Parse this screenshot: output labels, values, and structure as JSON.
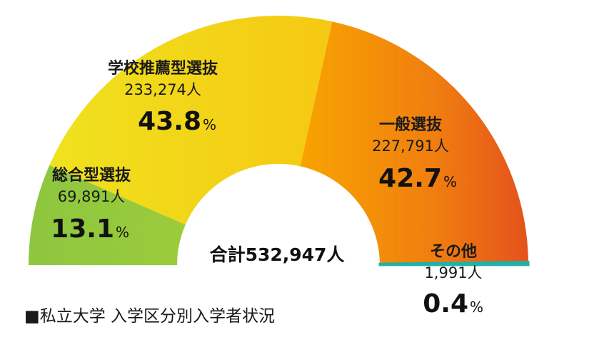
{
  "chart_data": {
    "type": "pie",
    "variant": "semicircle-donut",
    "caption": "■私立大学 入学区分別入学者状況",
    "total_label": "合計532,947人",
    "unit_suffix": "%",
    "slices": [
      {
        "name": "総合型選抜",
        "count_label": "69,891人",
        "count": 69891,
        "percent": 13.1,
        "color": "#8dc63f"
      },
      {
        "name": "学校推薦型選抜",
        "count_label": "233,274人",
        "count": 233274,
        "percent": 43.8,
        "color": "#f2d21c"
      },
      {
        "name": "一般選抜",
        "count_label": "227,791人",
        "count": 227791,
        "percent": 42.7,
        "color": "#f08010"
      },
      {
        "name": "その他",
        "count_label": "1,991人",
        "count": 1991,
        "percent": 0.4,
        "color": "#1fb0a8"
      }
    ]
  }
}
